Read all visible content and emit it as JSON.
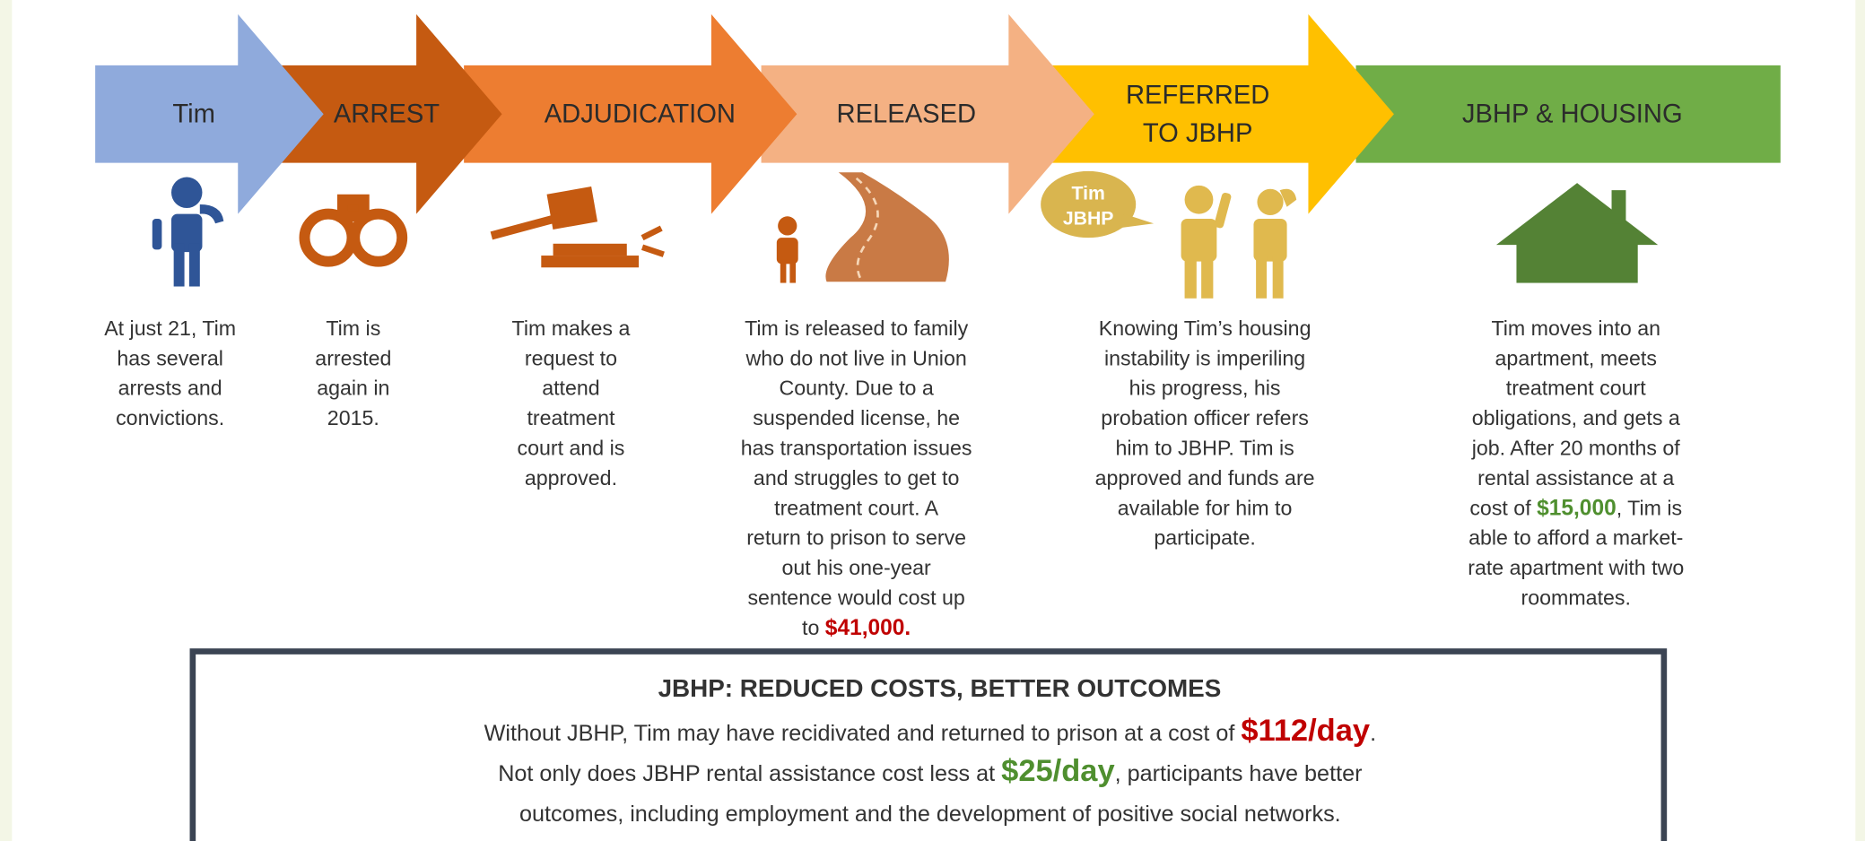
{
  "steps": [
    {
      "label": [
        "Tim"
      ],
      "color": "#8faadc",
      "description": [
        "At just 21, Tim",
        "has several",
        "arrests and",
        "convictions."
      ]
    },
    {
      "label": [
        "ARREST"
      ],
      "color": "#c55a11",
      "description": [
        "Tim is",
        "arrested",
        "again in",
        "2015."
      ]
    },
    {
      "label": [
        "ADJUDICATION"
      ],
      "color": "#ed7d31",
      "description": [
        "Tim makes a",
        "request to",
        "attend",
        "treatment",
        "court and is",
        "approved."
      ]
    },
    {
      "label": [
        "RELEASED"
      ],
      "color": "#f4b183",
      "description": [
        "Tim is released to family",
        "who do not live in Union",
        "County. Due to a",
        "suspended license, he",
        "has transportation issues",
        "and struggles to get to",
        "treatment court. A",
        "return to prison to serve",
        "out his one-year",
        "sentence would cost up",
        [
          {
            "text": "to "
          },
          {
            "text": "$41,000.",
            "color": "#c00000"
          }
        ]
      ]
    },
    {
      "label": [
        "REFERRED",
        "TO JBHP"
      ],
      "color": "#ffc000",
      "description": [
        "Knowing Tim’s housing",
        "instability is imperiling",
        "his progress, his",
        "probation officer refers",
        "him to JBHP. Tim is",
        "approved and funds are",
        "available for him to",
        "participate."
      ]
    },
    {
      "label": [
        "JBHP & HOUSING"
      ],
      "color": "#70ad47",
      "description": [
        "Tim moves into an",
        "apartment, meets",
        "treatment court",
        "obligations, and gets a",
        "job. After 20 months of",
        "rental assistance at a",
        [
          {
            "text": "cost of "
          },
          {
            "text": "$15,000",
            "color": "#4f8f2f"
          },
          {
            "text": ", Tim is"
          }
        ],
        "able to afford a market-",
        "rate apartment with two",
        "roommates."
      ]
    }
  ],
  "bubble": [
    "Tim",
    "JBHP"
  ],
  "summary": {
    "title": "JBHP: REDUCED COSTS, BETTER OUTCOMES",
    "lines": [
      [
        {
          "text": "Without JBHP, Tim may have recidivated and returned to prison at a cost of "
        },
        {
          "text": "$112/day",
          "color": "#c00000"
        },
        {
          "text": "."
        }
      ],
      [
        {
          "text": "Not only does JBHP rental assistance cost less at "
        },
        {
          "text": "$25/day",
          "color": "#4f8f2f"
        },
        {
          "text": ", participants have better"
        }
      ],
      [
        {
          "text": "outcomes, including employment and the development of positive social networks."
        }
      ]
    ]
  }
}
